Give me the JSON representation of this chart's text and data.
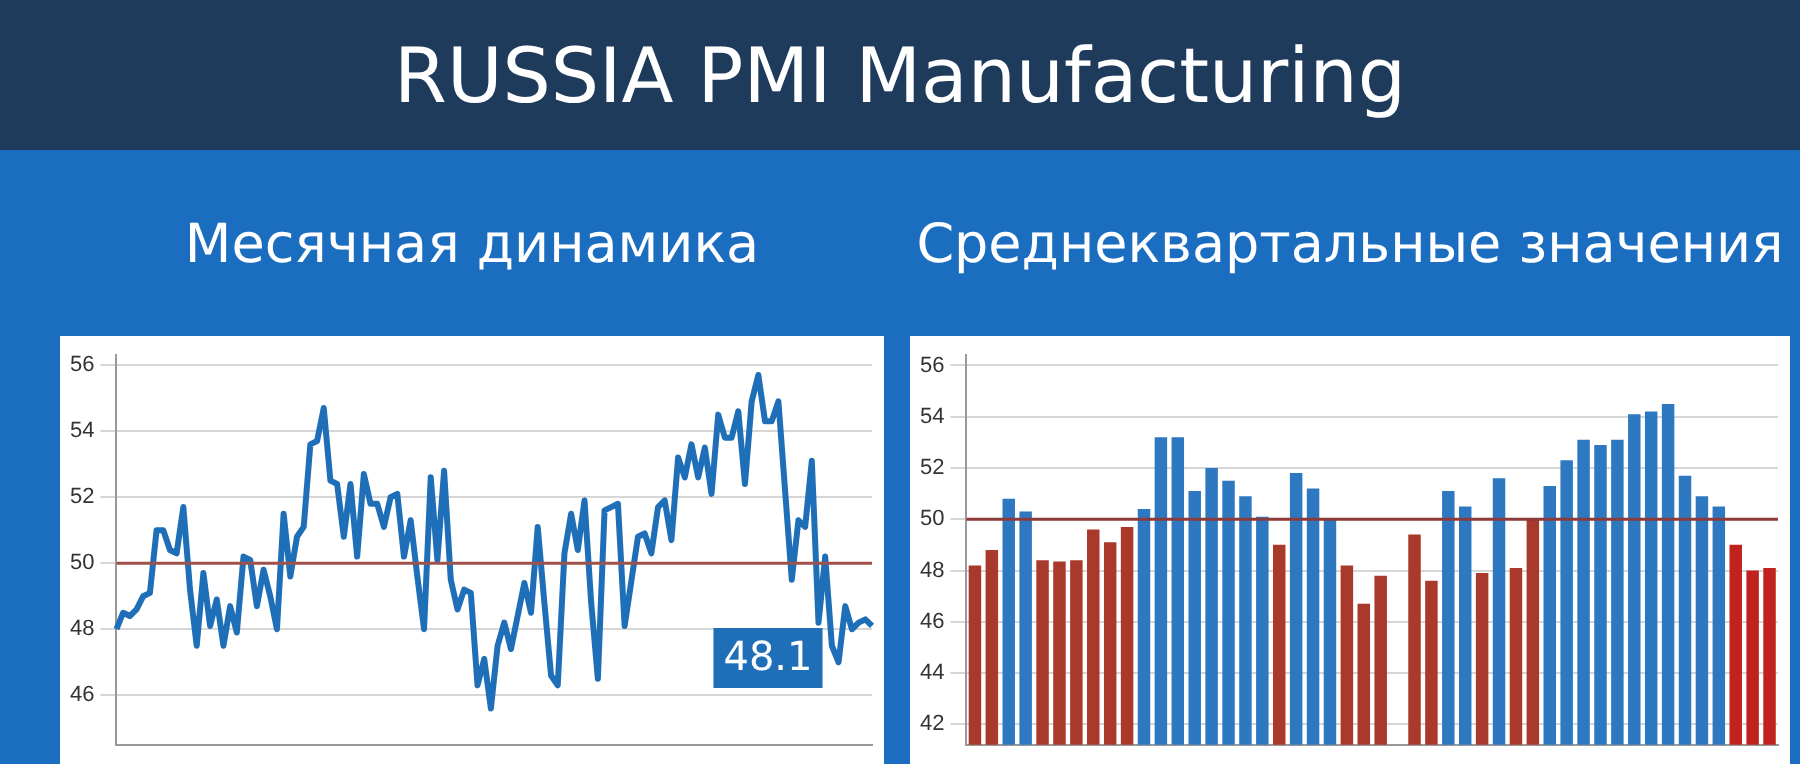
{
  "chart_data": [
    {
      "type": "line",
      "title": "RUSSIA PMI Manufacturing",
      "subtitle": "Месячная динамика",
      "categories": [
        null,
        null,
        null,
        null,
        null,
        null,
        null,
        null,
        null,
        null,
        null,
        null,
        null,
        null,
        null,
        null,
        null,
        null,
        null,
        null,
        null,
        null,
        null,
        null,
        null,
        null,
        null,
        null,
        null,
        null,
        null,
        null,
        null,
        null,
        null,
        null,
        null,
        null,
        null,
        null,
        null,
        null,
        null,
        null,
        null,
        null,
        null,
        null,
        null,
        null,
        null,
        null,
        null,
        null,
        null,
        null,
        null,
        null,
        null,
        null,
        null,
        null,
        null,
        null,
        null,
        null,
        null,
        null,
        null,
        null,
        null,
        null,
        null,
        null,
        null,
        null,
        null,
        null,
        null,
        null,
        null,
        null,
        null,
        null,
        null,
        null,
        null,
        null,
        null,
        null,
        null,
        null,
        null,
        null,
        null,
        null,
        null,
        null,
        null,
        null,
        null,
        null,
        null,
        null,
        null,
        null,
        null,
        null,
        null,
        null,
        null,
        null,
        null,
        null
      ],
      "ylim": [
        44.5,
        56.3
      ],
      "yticks": [
        46,
        48,
        50,
        52,
        54,
        56
      ],
      "grid": "y",
      "tick_labels": "y",
      "legend": false,
      "series": [
        {
          "color": "#1f6fb8",
          "values": [
            48.0,
            48.5,
            48.4,
            48.6,
            49.0,
            49.1,
            51.0,
            51.0,
            50.4,
            50.3,
            51.7,
            49.2,
            47.5,
            49.7,
            48.1,
            48.9,
            47.5,
            48.7,
            47.9,
            50.2,
            50.1,
            48.7,
            49.8,
            49.0,
            48.0,
            51.5,
            49.6,
            50.8,
            51.1,
            53.6,
            53.7,
            54.7,
            52.5,
            52.4,
            50.8,
            52.4,
            50.2,
            52.7,
            51.8,
            51.8,
            51.1,
            52.0,
            52.1,
            50.2,
            51.3,
            49.6,
            48.0,
            52.6,
            50.1,
            52.8,
            49.5,
            48.6,
            49.2,
            49.1,
            46.3,
            47.1,
            45.6,
            47.5,
            48.2,
            47.4,
            null,
            49.4,
            48.5,
            51.1,
            48.8,
            46.6,
            46.3,
            50.3,
            51.5,
            50.4,
            51.9,
            48.8,
            46.5,
            51.6,
            51.7,
            51.8,
            48.1,
            null,
            50.8,
            50.9,
            50.3,
            51.7,
            51.9,
            50.7,
            53.2,
            52.6,
            53.6,
            52.6,
            53.5,
            52.1,
            54.5,
            53.8,
            53.8,
            54.6,
            52.4,
            54.9,
            55.7,
            54.3,
            54.3,
            54.9,
            52.2,
            49.5,
            51.3,
            51.1,
            53.1,
            48.2,
            50.2,
            47.5,
            47.0,
            48.7,
            48.0,
            48.2,
            48.3,
            48.1
          ]
        }
      ],
      "ref_lines": [
        {
          "axis": "y",
          "value": 50,
          "color": "#a0524a"
        }
      ],
      "annotations": [
        "48.1"
      ]
    },
    {
      "type": "bar",
      "subtitle": "Среднеквартальные значения",
      "categories": [
        null,
        null,
        null,
        null,
        null,
        null,
        null,
        null,
        null,
        null,
        null,
        null,
        null,
        null,
        null,
        null,
        null,
        null,
        null,
        null,
        null,
        null,
        null,
        null,
        null,
        null,
        null,
        null,
        null,
        null,
        null,
        null,
        null,
        null,
        null,
        null,
        null,
        null,
        null,
        null,
        null,
        null,
        null,
        null,
        null,
        null,
        null,
        null
      ],
      "values": [
        48.2,
        48.8,
        50.8,
        50.3,
        48.4,
        48.35,
        48.4,
        49.6,
        49.1,
        49.7,
        50.4,
        53.2,
        53.2,
        51.1,
        52.0,
        51.5,
        50.9,
        50.1,
        49.0,
        51.8,
        51.2,
        50.0,
        48.2,
        46.7,
        47.8,
        null,
        49.4,
        47.6,
        51.1,
        50.5,
        47.9,
        51.6,
        48.1,
        50.0,
        51.3,
        52.3,
        53.1,
        52.9,
        53.1,
        54.1,
        54.2,
        54.5,
        51.7,
        50.9,
        50.5,
        49.0,
        48.0,
        48.1
      ],
      "colors": [
        "#a8392b",
        "#a8392b",
        "#2e78c2",
        "#2e78c2",
        "#a8392b",
        "#a8392b",
        "#a8392b",
        "#a8392b",
        "#a8392b",
        "#a8392b",
        "#2e78c2",
        "#2e78c2",
        "#2e78c2",
        "#2e78c2",
        "#2e78c2",
        "#2e78c2",
        "#2e78c2",
        "#2e78c2",
        "#a8392b",
        "#2e78c2",
        "#2e78c2",
        "#2e78c2",
        "#a8392b",
        "#a8392b",
        "#a8392b",
        "#a8392b",
        "#a8392b",
        "#a8392b",
        "#2e78c2",
        "#2e78c2",
        "#a8392b",
        "#2e78c2",
        "#a8392b",
        "#a8392b",
        "#2e78c2",
        "#2e78c2",
        "#2e78c2",
        "#2e78c2",
        "#2e78c2",
        "#2e78c2",
        "#2e78c2",
        "#2e78c2",
        "#2e78c2",
        "#2e78c2",
        "#2e78c2",
        "#c0231e",
        "#c0231e",
        "#c0231e"
      ],
      "ylim": [
        41.2,
        56.4
      ],
      "yticks": [
        42,
        44,
        46,
        48,
        50,
        52,
        54,
        56
      ],
      "grid": "y",
      "tick_labels": "y",
      "legend": false,
      "ref_lines": [
        {
          "axis": "y",
          "value": 50,
          "color": "#8c3a3a"
        }
      ]
    }
  ]
}
